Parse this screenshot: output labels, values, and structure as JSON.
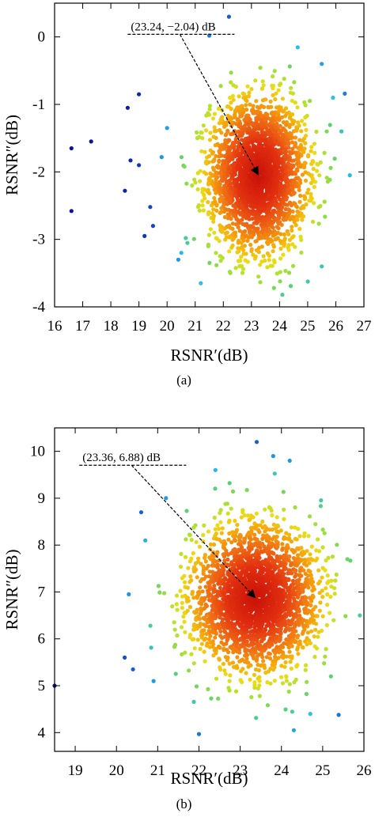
{
  "chart_data": [
    {
      "type": "scatter",
      "caption": "(a)",
      "xlabel": "RSNR′(dB)",
      "ylabel": "RSNR″(dB)",
      "xlim": [
        16,
        27
      ],
      "ylim": [
        -4,
        0.5
      ],
      "xticks": [
        16,
        17,
        18,
        19,
        20,
        21,
        22,
        23,
        24,
        25,
        26,
        27
      ],
      "yticks": [
        0,
        -1,
        -2,
        -3,
        -4
      ],
      "ytick_labels": [
        "0",
        "-1",
        "-2",
        "-3",
        "-4"
      ],
      "grid": false,
      "color_scale": "density: dark red (dense centre) → orange → yellow → green → cyan → blue (outliers)",
      "center": {
        "x": 23.24,
        "y": -2.04,
        "sx": 0.85,
        "sy": 0.55,
        "n": 2600
      },
      "annotation": {
        "text": "(23.24, −2.04) dB",
        "point": [
          23.24,
          -2.04
        ],
        "label_at": [
          18.6,
          0.05
        ]
      },
      "outliers": [
        {
          "x": 16.6,
          "y": -1.65
        },
        {
          "x": 17.3,
          "y": -1.55
        },
        {
          "x": 16.6,
          "y": -2.58
        },
        {
          "x": 18.5,
          "y": -2.28
        },
        {
          "x": 18.6,
          "y": -1.05
        },
        {
          "x": 19.0,
          "y": -0.85
        },
        {
          "x": 18.7,
          "y": -1.83
        },
        {
          "x": 19.0,
          "y": -1.9
        },
        {
          "x": 19.4,
          "y": -2.52
        },
        {
          "x": 19.2,
          "y": -2.95
        },
        {
          "x": 19.5,
          "y": -2.8
        },
        {
          "x": 22.2,
          "y": 0.3
        },
        {
          "x": 21.5,
          "y": 0.02
        },
        {
          "x": 26.5,
          "y": -2.05
        },
        {
          "x": 21.2,
          "y": -3.65
        },
        {
          "x": 24.1,
          "y": -3.82
        },
        {
          "x": 23.8,
          "y": -3.72
        },
        {
          "x": 25.5,
          "y": -0.4
        },
        {
          "x": 25.9,
          "y": -0.9
        },
        {
          "x": 26.2,
          "y": -1.4
        },
        {
          "x": 20.0,
          "y": -1.35
        },
        {
          "x": 20.4,
          "y": -3.3
        },
        {
          "x": 25.5,
          "y": -3.4
        }
      ]
    },
    {
      "type": "scatter",
      "caption": "(b)",
      "xlabel": "RSNR′(dB)",
      "ylabel": "RSNR″(dB)",
      "xlim": [
        18.5,
        26
      ],
      "ylim": [
        3.6,
        10.5
      ],
      "xticks": [
        19,
        20,
        21,
        22,
        23,
        24,
        25,
        26
      ],
      "yticks": [
        4,
        5,
        6,
        7,
        8,
        9,
        10
      ],
      "ytick_labels": [
        "4",
        "5",
        "6",
        "7",
        "8",
        "9",
        "10"
      ],
      "grid": false,
      "color_scale": "density: dark red (dense centre) → orange → yellow → green → cyan → blue (outliers)",
      "center": {
        "x": 23.36,
        "y": 6.88,
        "sx": 0.75,
        "sy": 0.75,
        "n": 2600
      },
      "annotation": {
        "text": "(23.36, 6.88) dB",
        "point": [
          23.36,
          6.88
        ],
        "label_at": [
          19.1,
          9.72
        ]
      },
      "outliers": [
        {
          "x": 18.5,
          "y": 5.0
        },
        {
          "x": 23.4,
          "y": 10.2
        },
        {
          "x": 23.8,
          "y": 9.9
        },
        {
          "x": 20.6,
          "y": 8.7
        },
        {
          "x": 20.2,
          "y": 5.6
        },
        {
          "x": 20.4,
          "y": 5.35
        },
        {
          "x": 22.0,
          "y": 3.97
        },
        {
          "x": 24.3,
          "y": 4.05
        },
        {
          "x": 24.7,
          "y": 4.4
        },
        {
          "x": 25.9,
          "y": 6.5
        },
        {
          "x": 25.6,
          "y": 7.7
        },
        {
          "x": 21.2,
          "y": 9.0
        },
        {
          "x": 22.4,
          "y": 9.6
        },
        {
          "x": 24.2,
          "y": 9.8
        },
        {
          "x": 20.3,
          "y": 6.95
        },
        {
          "x": 20.9,
          "y": 5.1
        },
        {
          "x": 25.2,
          "y": 5.2
        },
        {
          "x": 20.7,
          "y": 8.1
        }
      ]
    }
  ]
}
